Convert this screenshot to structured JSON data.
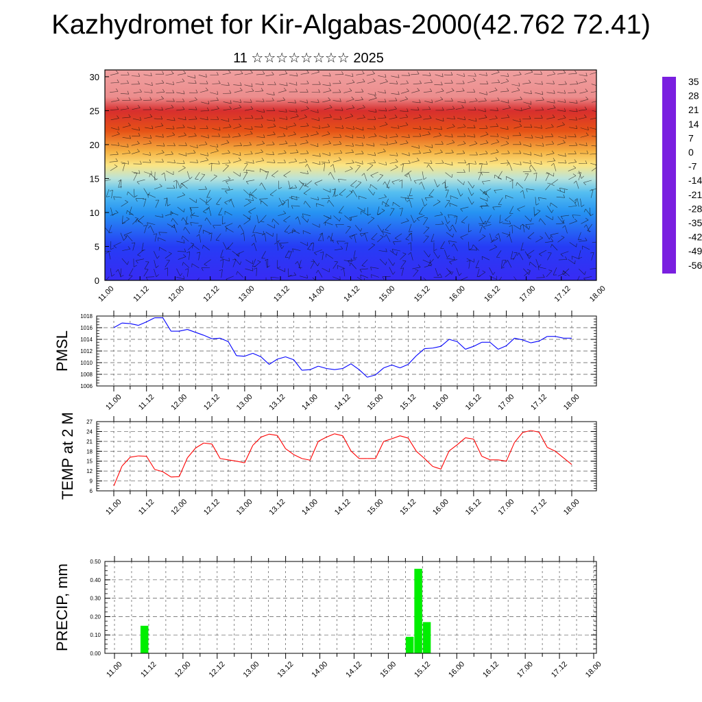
{
  "title": "Kazhydromet for Kir-Algabas-2000(42.762 72.41)",
  "subtitle": "11 ☆☆☆☆☆☆☆☆ 2025",
  "time_labels": [
    "11.00",
    "11.12",
    "12.00",
    "12.12",
    "13.00",
    "13.12",
    "14.00",
    "14.12",
    "15.00",
    "15.12",
    "16.00",
    "16.12",
    "17.00",
    "17.12",
    "18.00"
  ],
  "colors": {
    "pmsl_line": "#0000ff",
    "temp_line": "#ff0000",
    "precip_bar": "#00ee00",
    "colormap": [
      "#7a1fe0",
      "#5a2af0",
      "#2a2cf5",
      "#1b6ef5",
      "#2fb0f0",
      "#9fdcf0",
      "#fff6a0",
      "#f7d060",
      "#f5a83a",
      "#f07a20",
      "#e03a10",
      "#d01010",
      "#f0a0a0"
    ]
  },
  "colorbar": {
    "labels": [
      "35",
      "28",
      "21",
      "14",
      "7",
      "0",
      "-7",
      "-14",
      "-21",
      "-28",
      "-35",
      "-42",
      "-49",
      "-56"
    ]
  },
  "chart_data": [
    {
      "type": "heatmap",
      "name": "vertical cross-section (temperature with wind barbs)",
      "ylabel": "",
      "ylim": [
        0,
        31
      ],
      "yticks": [
        0,
        5,
        10,
        15,
        20,
        25,
        30
      ],
      "x_tick_labels": [
        "11.00",
        "11.12",
        "12.00",
        "12.12",
        "13.00",
        "13.12",
        "14.00",
        "14.12",
        "15.00",
        "15.12",
        "16.00",
        "16.12",
        "17.00",
        "17.12",
        "18.00"
      ],
      "value_range": [
        -56,
        35
      ],
      "legend_placement": "right",
      "levels": [
        {
          "level": 0,
          "value": 22
        },
        {
          "level": 5,
          "value": 18
        },
        {
          "level": 10,
          "value": 8
        },
        {
          "level": 13,
          "value": 2
        },
        {
          "level": 15,
          "value": -5
        },
        {
          "level": 17,
          "value": -14
        },
        {
          "level": 19,
          "value": -24
        },
        {
          "level": 22,
          "value": -38
        },
        {
          "level": 25,
          "value": -50
        },
        {
          "level": 27,
          "value": -55
        },
        {
          "level": 31,
          "value": -56
        }
      ]
    },
    {
      "type": "line",
      "ylabel": "PMSL",
      "ylim": [
        1006,
        1018
      ],
      "yticks": [
        1006,
        1008,
        1010,
        1012,
        1014,
        1016,
        1018
      ],
      "x_tick_labels": [
        "11.00",
        "11.12",
        "12.00",
        "12.12",
        "13.00",
        "13.12",
        "14.00",
        "14.12",
        "15.00",
        "15.12",
        "16.00",
        "16.12",
        "17.00",
        "17.12",
        "18.00"
      ],
      "grid": true,
      "x": [
        0,
        3,
        6,
        9,
        12,
        15,
        18,
        21,
        24,
        27,
        30,
        33,
        36,
        39,
        42,
        45,
        48,
        51,
        54,
        57,
        60,
        63,
        66,
        69,
        72,
        75,
        78,
        81,
        84,
        87,
        90,
        93,
        96,
        99,
        102,
        105,
        108,
        111,
        114,
        117,
        120,
        123,
        126,
        129,
        132,
        135,
        138,
        141,
        144,
        147,
        150,
        153,
        156,
        159,
        162,
        165,
        168
      ],
      "values": [
        1016.0,
        1016.8,
        1016.7,
        1016.4,
        1017.0,
        1017.7,
        1017.7,
        1015.4,
        1015.4,
        1015.7,
        1015.2,
        1014.7,
        1014.1,
        1014.2,
        1013.6,
        1011.2,
        1011.1,
        1011.6,
        1011.0,
        1009.7,
        1010.6,
        1011.0,
        1010.5,
        1008.7,
        1008.8,
        1009.4,
        1009.0,
        1008.8,
        1009.0,
        1009.8,
        1008.8,
        1007.5,
        1007.9,
        1009.1,
        1009.6,
        1009.1,
        1009.7,
        1011.2,
        1012.4,
        1012.5,
        1012.8,
        1014.0,
        1013.6,
        1012.3,
        1012.8,
        1013.5,
        1013.5,
        1012.3,
        1012.9,
        1014.2,
        1013.9,
        1013.4,
        1013.7,
        1014.5,
        1014.5,
        1014.2,
        1014.2
      ]
    },
    {
      "type": "line",
      "ylabel": "TEMP at 2 M",
      "ylim": [
        6,
        27
      ],
      "yticks": [
        6,
        9,
        12,
        15,
        18,
        21,
        24,
        27
      ],
      "x_tick_labels": [
        "11.00",
        "11.12",
        "12.00",
        "12.12",
        "13.00",
        "13.12",
        "14.00",
        "14.12",
        "15.00",
        "15.12",
        "16.00",
        "16.12",
        "17.00",
        "17.12",
        "18.00"
      ],
      "grid": true,
      "x": [
        0,
        3,
        6,
        9,
        12,
        15,
        18,
        21,
        24,
        27,
        30,
        33,
        36,
        39,
        42,
        45,
        48,
        51,
        54,
        57,
        60,
        63,
        66,
        69,
        72,
        75,
        78,
        81,
        84,
        87,
        90,
        93,
        96,
        99,
        102,
        105,
        108,
        111,
        114,
        117,
        120,
        123,
        126,
        129,
        132,
        135,
        138,
        141,
        144,
        147,
        150,
        153,
        156,
        159,
        162,
        165,
        168
      ],
      "values": [
        7.5,
        13.5,
        16.2,
        16.6,
        16.5,
        12.5,
        11.8,
        10.2,
        10.3,
        16.0,
        19.0,
        20.5,
        20.2,
        15.8,
        15.4,
        15.0,
        14.5,
        19.8,
        22.3,
        23.2,
        22.8,
        18.8,
        17.0,
        15.8,
        15.3,
        21.0,
        22.3,
        23.3,
        22.7,
        18.1,
        15.8,
        15.8,
        15.8,
        21.0,
        21.8,
        22.7,
        22.0,
        18.0,
        15.8,
        13.4,
        12.6,
        18.1,
        20.0,
        22.1,
        21.7,
        16.5,
        15.4,
        15.4,
        15.0,
        20.7,
        23.7,
        24.3,
        23.8,
        19.2,
        18.0,
        16.0,
        14.0
      ]
    },
    {
      "type": "bar",
      "ylabel": "PRECIP, mm",
      "ylim": [
        0,
        0.5
      ],
      "yticks": [
        "0.00",
        "0.10",
        "0.20",
        "0.30",
        "0.40",
        "0.50"
      ],
      "x_tick_labels": [
        "11.00",
        "11.12",
        "12.00",
        "12.12",
        "13.00",
        "13.12",
        "14.00",
        "14.12",
        "15.00",
        "15.12",
        "16.00",
        "16.12",
        "17.00",
        "17.12",
        "18.00"
      ],
      "grid": true,
      "bars": [
        {
          "x0": 9,
          "x1": 12,
          "value": 0.15
        },
        {
          "x0": 102,
          "x1": 105,
          "value": 0.09
        },
        {
          "x0": 105,
          "x1": 108,
          "value": 0.46
        },
        {
          "x0": 108,
          "x1": 111,
          "value": 0.17
        }
      ]
    }
  ]
}
